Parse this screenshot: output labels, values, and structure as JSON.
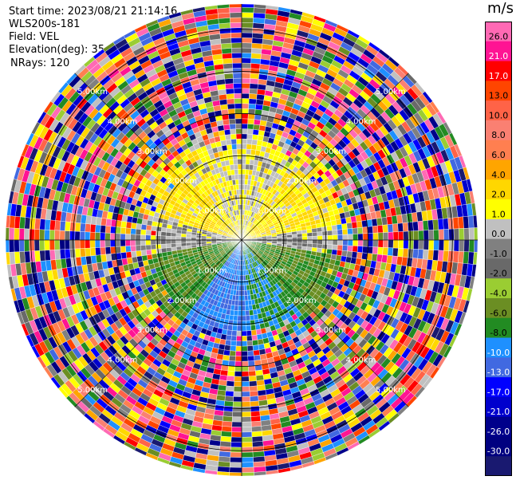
{
  "header": {
    "start_time": "Start time: 2023/08/21 21:14:16",
    "instrument": "WLS200s-181",
    "field": "Field: VEL",
    "elevation": "Elevation(deg): 35.30",
    "nrays": "NRays: 120"
  },
  "colorbar": {
    "unit": "m/s",
    "ticks": [
      "26.0",
      "21.0",
      "17.0",
      "13.0",
      "10.0",
      "8.0",
      "6.0",
      "4.0",
      "2.0",
      "1.0",
      "0.0",
      "-1.0",
      "-2.0",
      "-4.0",
      "-6.0",
      "-8.0",
      "-10.0",
      "-13.0",
      "-17.0",
      "-21.0",
      "-26.0",
      "-30.0"
    ],
    "colors": [
      "#ff69b4",
      "#ff1493",
      "#ff0000",
      "#ff4500",
      "#ff6347",
      "#fa8072",
      "#ff7f50",
      "#ffa500",
      "#ffd700",
      "#ffff00",
      "#c0c0c0",
      "#808080",
      "#696969",
      "#9acd32",
      "#6b8e23",
      "#228b22",
      "#1e90ff",
      "#4169e1",
      "#0000ff",
      "#0000cd",
      "#00008b",
      "#000080",
      "#191970"
    ]
  },
  "chart_data": {
    "type": "ppi",
    "field": "VEL",
    "units": "m/s",
    "nrays": 120,
    "elevation_deg": 35.3,
    "range_rings_km": [
      1.0,
      2.0,
      3.0,
      4.0,
      5.0
    ],
    "ring_labels": [
      "1.00km",
      "2.00km",
      "3.00km",
      "4.00km",
      "5.00km"
    ],
    "max_range_km": 5.6,
    "clean_range_km": 2.5,
    "sectors": [
      {
        "from_deg": 30,
        "to_deg": 80,
        "value": 2.0
      },
      {
        "from_deg": 80,
        "to_deg": 100,
        "value": 0.0
      },
      {
        "from_deg": 100,
        "to_deg": 140,
        "value": -6.0
      },
      {
        "from_deg": 140,
        "to_deg": 175,
        "value": -8.0
      },
      {
        "from_deg": 175,
        "to_deg": 215,
        "value": -10.0
      },
      {
        "from_deg": 215,
        "to_deg": 260,
        "value": -6.0
      },
      {
        "from_deg": 260,
        "to_deg": 285,
        "value": 0.0
      },
      {
        "from_deg": 285,
        "to_deg": 330,
        "value": 2.0
      }
    ]
  }
}
